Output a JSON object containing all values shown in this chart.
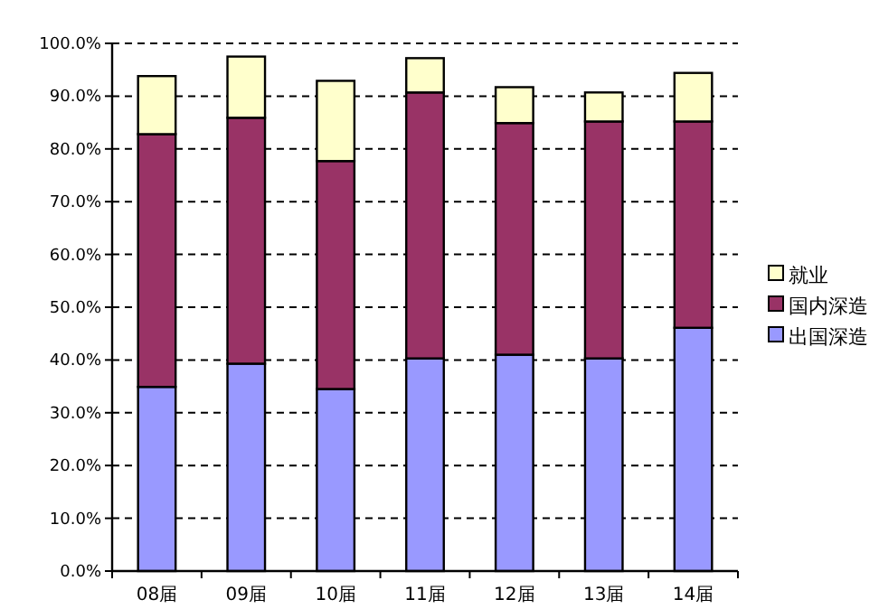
{
  "chart_data": {
    "type": "bar",
    "stacked": true,
    "categories": [
      "08届",
      "09届",
      "10届",
      "11届",
      "12届",
      "13届",
      "14届"
    ],
    "series": [
      {
        "name": "出国深造",
        "color": "#9999ff",
        "values": [
          34.9,
          39.3,
          34.5,
          40.3,
          41.0,
          40.3,
          46.1
        ]
      },
      {
        "name": "国内深造",
        "color": "#993366",
        "values": [
          47.9,
          46.6,
          43.2,
          50.4,
          43.9,
          44.9,
          39.1
        ]
      },
      {
        "name": "就业",
        "color": "#ffffcc",
        "values": [
          11.0,
          11.6,
          15.2,
          6.5,
          6.8,
          5.5,
          9.2
        ]
      }
    ],
    "ylim": [
      0,
      100
    ],
    "yticks": [
      {
        "value": 0,
        "label": "0.0%"
      },
      {
        "value": 10,
        "label": "10.0%"
      },
      {
        "value": 20,
        "label": "20.0%"
      },
      {
        "value": 30,
        "label": "30.0%"
      },
      {
        "value": 40,
        "label": "40.0%"
      },
      {
        "value": 50,
        "label": "50.0%"
      },
      {
        "value": 60,
        "label": "60.0%"
      },
      {
        "value": 70,
        "label": "70.0%"
      },
      {
        "value": 80,
        "label": "80.0%"
      },
      {
        "value": 90,
        "label": "90.0%"
      },
      {
        "value": 100,
        "label": "100.0%"
      }
    ],
    "grid": "y",
    "legend": "right"
  }
}
